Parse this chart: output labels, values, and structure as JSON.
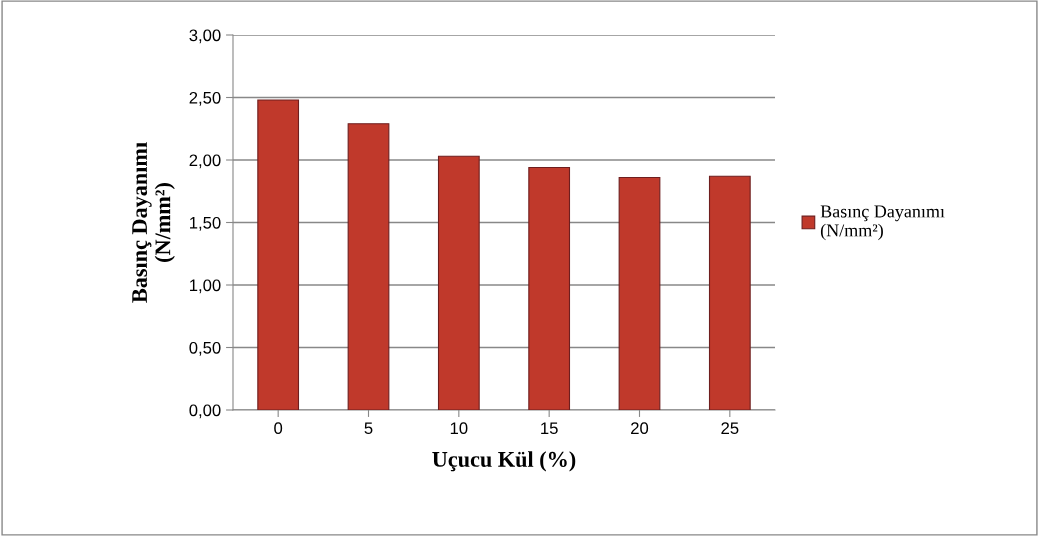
{
  "chart_data": {
    "type": "bar",
    "xlabel": "Uçucu Kül (%)",
    "ylabel": "Basınç Dayanımı\n(N/mm²)",
    "categories": [
      "0",
      "5",
      "10",
      "15",
      "20",
      "25"
    ],
    "series": [
      {
        "name": "Basınç Dayanımı\n(N/mm²)",
        "color": "#c0392b",
        "values": [
          2.48,
          2.29,
          2.03,
          1.94,
          1.86,
          1.87
        ]
      }
    ],
    "ylim": [
      0,
      3
    ],
    "yticks": [
      {
        "value": 0,
        "label": "0,00"
      },
      {
        "value": 0.5,
        "label": "0,50"
      },
      {
        "value": 1,
        "label": "1,00"
      },
      {
        "value": 1.5,
        "label": "1,50"
      },
      {
        "value": 2,
        "label": "2,00"
      },
      {
        "value": 2.5,
        "label": "2,50"
      },
      {
        "value": 3,
        "label": "3,00"
      }
    ],
    "grid": "y",
    "legend": "right"
  }
}
